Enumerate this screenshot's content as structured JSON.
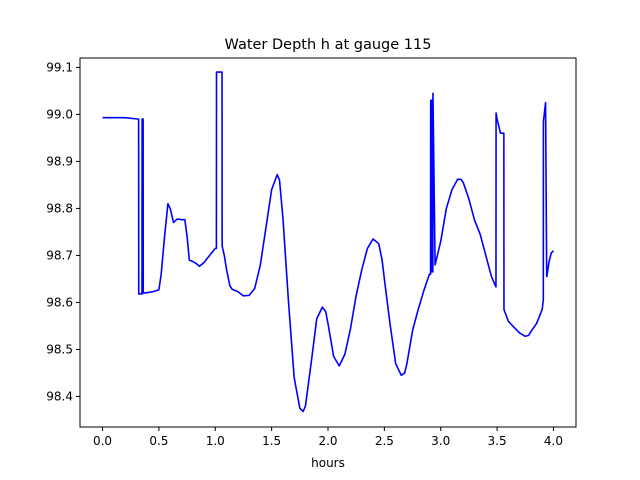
{
  "chart_data": {
    "type": "line",
    "title": "Water Depth h at gauge 115",
    "xlabel": "hours",
    "ylabel": "",
    "xlim": [
      -0.2,
      4.2
    ],
    "ylim": [
      98.335,
      99.12
    ],
    "x_ticks": [
      0.0,
      0.5,
      1.0,
      1.5,
      2.0,
      2.5,
      3.0,
      3.5,
      4.0
    ],
    "x_tick_labels": [
      "0.0",
      "0.5",
      "1.0",
      "1.5",
      "2.0",
      "2.5",
      "3.0",
      "3.5",
      "4.0"
    ],
    "y_ticks": [
      98.4,
      98.5,
      98.6,
      98.7,
      98.8,
      98.9,
      99.0,
      99.1
    ],
    "y_tick_labels": [
      "98.4",
      "98.5",
      "98.6",
      "98.7",
      "98.8",
      "98.9",
      "99.0",
      "99.1"
    ],
    "grid": false,
    "series": [
      {
        "color": "#0000ff",
        "x": [
          0.0,
          0.2,
          0.32,
          0.321,
          0.35,
          0.351,
          0.36,
          0.361,
          0.4,
          0.45,
          0.5,
          0.52,
          0.55,
          0.58,
          0.6,
          0.63,
          0.66,
          0.68,
          0.7,
          0.73,
          0.75,
          0.77,
          0.8,
          0.83,
          0.86,
          0.9,
          0.95,
          1.0,
          1.01,
          1.011,
          1.03,
          1.06,
          1.061,
          1.08,
          1.1,
          1.13,
          1.15,
          1.2,
          1.25,
          1.3,
          1.35,
          1.4,
          1.45,
          1.5,
          1.55,
          1.57,
          1.6,
          1.65,
          1.7,
          1.75,
          1.78,
          1.8,
          1.85,
          1.9,
          1.95,
          1.98,
          2.0,
          2.05,
          2.1,
          2.15,
          2.2,
          2.25,
          2.3,
          2.35,
          2.4,
          2.45,
          2.48,
          2.5,
          2.55,
          2.6,
          2.65,
          2.68,
          2.7,
          2.75,
          2.8,
          2.85,
          2.9,
          2.91,
          2.911,
          2.92,
          2.921,
          2.93,
          2.931,
          2.95,
          3.0,
          3.05,
          3.1,
          3.15,
          3.18,
          3.2,
          3.25,
          3.3,
          3.35,
          3.4,
          3.45,
          3.49,
          3.491,
          3.5,
          3.53,
          3.56,
          3.561,
          3.6,
          3.65,
          3.7,
          3.75,
          3.78,
          3.8,
          3.85,
          3.9,
          3.91,
          3.911,
          3.93,
          3.94,
          3.941,
          3.96,
          3.98,
          4.0
        ],
        "y": [
          98.993,
          98.993,
          98.99,
          98.618,
          98.618,
          98.99,
          98.99,
          98.62,
          98.621,
          98.623,
          98.627,
          98.66,
          98.74,
          98.81,
          98.8,
          98.77,
          98.777,
          98.777,
          98.776,
          98.776,
          98.74,
          98.69,
          98.687,
          98.683,
          98.677,
          98.685,
          98.7,
          98.715,
          98.715,
          99.09,
          99.09,
          99.09,
          98.72,
          98.7,
          98.67,
          98.635,
          98.628,
          98.623,
          98.614,
          98.615,
          98.63,
          98.68,
          98.76,
          98.84,
          98.872,
          98.86,
          98.78,
          98.6,
          98.44,
          98.375,
          98.368,
          98.38,
          98.47,
          98.565,
          98.59,
          98.58,
          98.555,
          98.485,
          98.465,
          98.49,
          98.545,
          98.615,
          98.67,
          98.715,
          98.735,
          98.725,
          98.69,
          98.65,
          98.555,
          98.47,
          98.445,
          98.45,
          98.47,
          98.54,
          98.585,
          98.625,
          98.66,
          98.66,
          99.03,
          99.03,
          98.665,
          98.665,
          99.045,
          98.68,
          98.73,
          98.8,
          98.84,
          98.862,
          98.862,
          98.855,
          98.82,
          98.775,
          98.745,
          98.7,
          98.655,
          98.633,
          99.003,
          98.99,
          98.96,
          98.96,
          98.585,
          98.56,
          98.547,
          98.535,
          98.528,
          98.53,
          98.538,
          98.555,
          98.585,
          98.605,
          98.985,
          99.025,
          98.66,
          98.655,
          98.685,
          98.705,
          98.71
        ]
      }
    ]
  }
}
